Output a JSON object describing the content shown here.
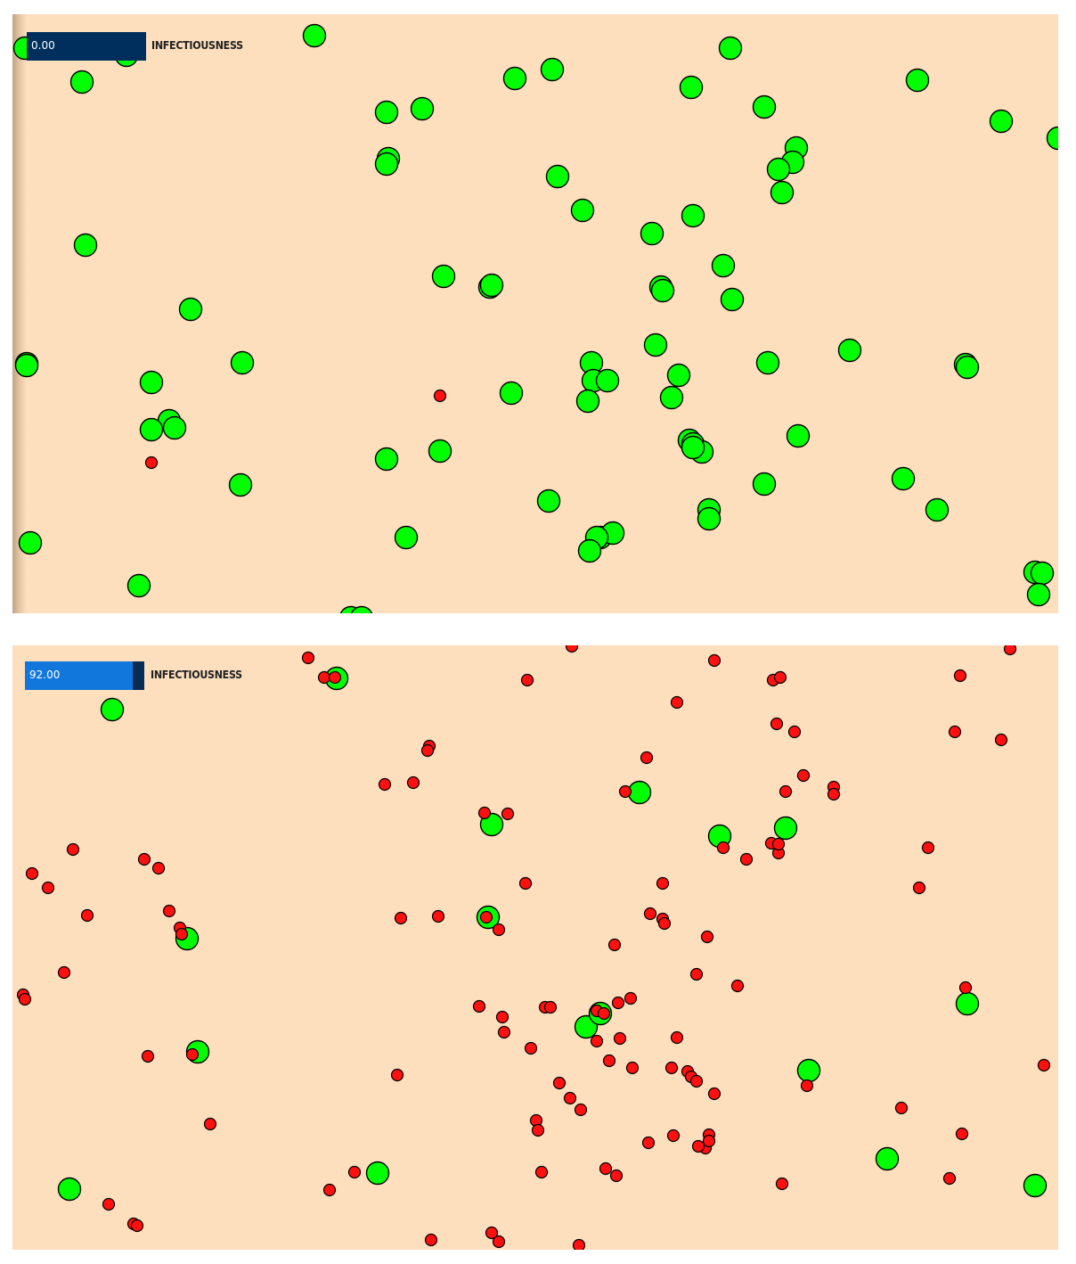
{
  "colors": {
    "background": "#fddfbe",
    "healthy": "#00ff00",
    "infected": "#ff1010",
    "outline": "#000000",
    "slider_track_top": "#002f5e",
    "slider_track_bottom": "#1177dd",
    "slider_handle": "#0a2a52"
  },
  "panels": [
    {
      "slider": {
        "label": "INFECTIOUSNESS",
        "value_text": "0.00",
        "value": 0
      }
    },
    {
      "slider": {
        "label": "INFECTIOUSNESS",
        "value_text": "92.00",
        "value": 92
      }
    }
  ]
}
